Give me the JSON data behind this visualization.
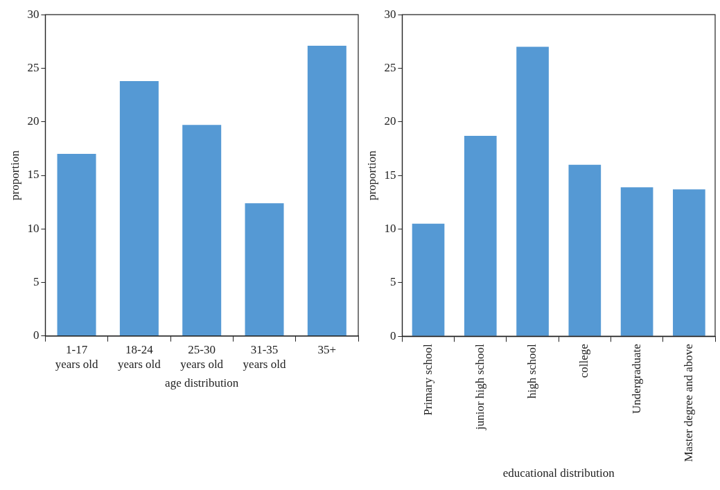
{
  "chart_data": [
    {
      "type": "bar",
      "categories": [
        "1-17 years old",
        "18-24 years old",
        "25-30 years old",
        "31-35 years old",
        "35+"
      ],
      "values": [
        17.0,
        23.8,
        19.7,
        12.4,
        27.1
      ],
      "color": "#5599d4",
      "xlabel": "age distribution",
      "ylabel": "proportion",
      "ylim": [
        0,
        30
      ],
      "yticks": [
        0,
        5,
        10,
        15,
        20,
        25,
        30
      ],
      "grid": false,
      "legend": false
    },
    {
      "type": "bar",
      "categories": [
        "Primary school",
        "junior high school",
        "high school",
        "college",
        "Undergraduate",
        "Master degree and above"
      ],
      "values": [
        10.5,
        18.7,
        27.0,
        16.0,
        13.9,
        13.7
      ],
      "color": "#5599d4",
      "xlabel": "educational distribution",
      "ylabel": "proportion",
      "ylim": [
        0,
        30
      ],
      "yticks": [
        0,
        5,
        10,
        15,
        20,
        25,
        30
      ],
      "grid": false,
      "legend": false
    }
  ]
}
